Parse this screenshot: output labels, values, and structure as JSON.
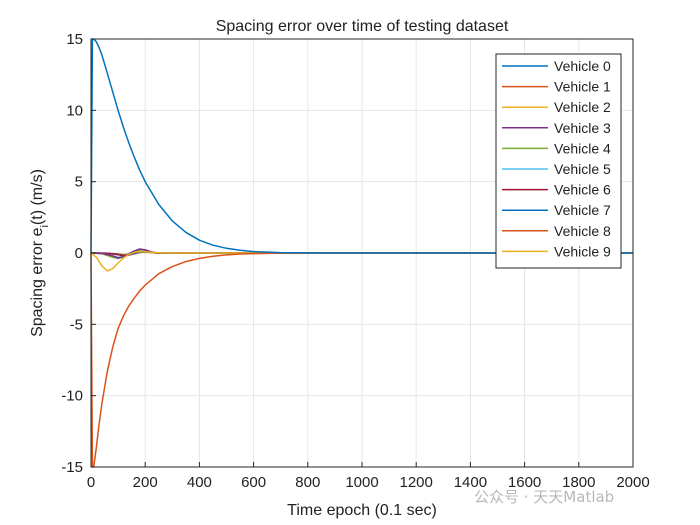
{
  "chart_data": {
    "type": "line",
    "title": "Spacing error over time of testing dataset",
    "xlabel": "Time epoch (0.1 sec)",
    "ylabel": {
      "pre": "Spacing error e",
      "sub": "i",
      "post": "(t) (m/s)"
    },
    "xlim": [
      0,
      2000
    ],
    "ylim": [
      -15,
      15
    ],
    "xticks": [
      0,
      200,
      400,
      600,
      800,
      1000,
      1200,
      1400,
      1600,
      1800,
      2000
    ],
    "yticks": [
      -15,
      -10,
      -5,
      0,
      5,
      10,
      15
    ],
    "grid": true,
    "legend_position": "top-right",
    "series": [
      {
        "name": "Vehicle 0",
        "color": "#0072BD",
        "x": [
          0,
          5,
          10,
          20,
          30,
          40,
          60,
          80,
          100,
          120,
          140,
          160,
          180,
          200,
          250,
          300,
          350,
          400,
          450,
          500,
          550,
          600,
          700,
          800,
          1000,
          1500,
          2000
        ],
        "y": [
          0,
          15,
          15,
          14.8,
          14.4,
          13.9,
          12.6,
          11.3,
          10.0,
          8.8,
          7.7,
          6.7,
          5.8,
          5.0,
          3.4,
          2.25,
          1.45,
          0.9,
          0.55,
          0.33,
          0.19,
          0.1,
          0.03,
          0.01,
          0,
          0,
          0
        ]
      },
      {
        "name": "Vehicle 1",
        "color": "#D95319",
        "x": [
          0,
          5,
          10,
          20,
          30,
          40,
          60,
          80,
          100,
          120,
          140,
          160,
          180,
          200,
          250,
          300,
          350,
          400,
          450,
          500,
          550,
          600,
          700,
          800,
          1000,
          1500,
          2000
        ],
        "y": [
          0,
          -15,
          -15,
          -13.6,
          -12.0,
          -10.6,
          -8.3,
          -6.6,
          -5.3,
          -4.4,
          -3.7,
          -3.15,
          -2.65,
          -2.25,
          -1.45,
          -0.95,
          -0.6,
          -0.38,
          -0.23,
          -0.13,
          -0.07,
          -0.04,
          -0.01,
          0,
          0,
          0,
          0
        ]
      },
      {
        "name": "Vehicle 2",
        "color": "#EDB120",
        "x": [
          0,
          20,
          40,
          60,
          80,
          100,
          120,
          140,
          160,
          180,
          200,
          240,
          280,
          350,
          2000
        ],
        "y": [
          0,
          -0.3,
          -0.9,
          -1.25,
          -1.1,
          -0.7,
          -0.35,
          -0.1,
          0.05,
          0.1,
          0.08,
          0.03,
          0,
          0,
          0
        ]
      },
      {
        "name": "Vehicle 3",
        "color": "#7E2F8E",
        "x": [
          0,
          40,
          80,
          100,
          120,
          140,
          160,
          180,
          200,
          220,
          240,
          280,
          320,
          400,
          2000
        ],
        "y": [
          0,
          -0.02,
          -0.2,
          -0.35,
          -0.25,
          -0.05,
          0.15,
          0.28,
          0.22,
          0.1,
          0.02,
          -0.02,
          0,
          0,
          0
        ]
      },
      {
        "name": "Vehicle 4",
        "color": "#77AC30",
        "x": [
          0,
          40,
          80,
          100,
          120,
          140,
          160,
          180,
          200,
          220,
          260,
          300,
          400,
          2000
        ],
        "y": [
          0,
          -0.05,
          -0.3,
          -0.38,
          -0.28,
          -0.1,
          0.08,
          0.16,
          0.12,
          0.05,
          0,
          -0.01,
          0,
          0
        ]
      },
      {
        "name": "Vehicle 5",
        "color": "#4DBEEE",
        "x": [
          0,
          40,
          80,
          100,
          120,
          140,
          160,
          180,
          200,
          220,
          260,
          300,
          400,
          2000
        ],
        "y": [
          0,
          -0.04,
          -0.2,
          -0.3,
          -0.25,
          -0.12,
          0.04,
          0.12,
          0.1,
          0.04,
          0,
          0,
          0,
          0
        ]
      },
      {
        "name": "Vehicle 6",
        "color": "#A2142F",
        "x": [
          0,
          60,
          100,
          120,
          140,
          160,
          180,
          200,
          220,
          240,
          270,
          300,
          400,
          2000
        ],
        "y": [
          0,
          -0.02,
          -0.12,
          -0.2,
          -0.15,
          0,
          0.12,
          0.1,
          0.04,
          0,
          -0.02,
          0,
          0,
          0
        ]
      },
      {
        "name": "Vehicle 7",
        "color": "#0072BD",
        "x": [
          0,
          60,
          100,
          120,
          140,
          160,
          180,
          200,
          220,
          240,
          270,
          300,
          400,
          2000
        ],
        "y": [
          0,
          -0.02,
          -0.1,
          -0.18,
          -0.15,
          -0.05,
          0.05,
          0.08,
          0.05,
          0.01,
          -0.01,
          0,
          0,
          0
        ]
      },
      {
        "name": "Vehicle 8",
        "color": "#D95319",
        "x": [
          0,
          60,
          100,
          120,
          140,
          160,
          180,
          200,
          220,
          240,
          270,
          300,
          400,
          2000
        ],
        "y": [
          0,
          -0.02,
          -0.08,
          -0.14,
          -0.12,
          -0.04,
          0.04,
          0.06,
          0.04,
          0.01,
          -0.01,
          0,
          0,
          0
        ]
      },
      {
        "name": "Vehicle 9",
        "color": "#EDB120",
        "x": [
          0,
          60,
          100,
          120,
          140,
          160,
          180,
          200,
          220,
          240,
          270,
          300,
          400,
          2000
        ],
        "y": [
          0,
          -0.02,
          -0.06,
          -0.1,
          -0.09,
          -0.03,
          0.03,
          0.05,
          0.03,
          0.01,
          0,
          0,
          0,
          0
        ]
      }
    ]
  },
  "watermark": "公众号 · 天天Matlab"
}
